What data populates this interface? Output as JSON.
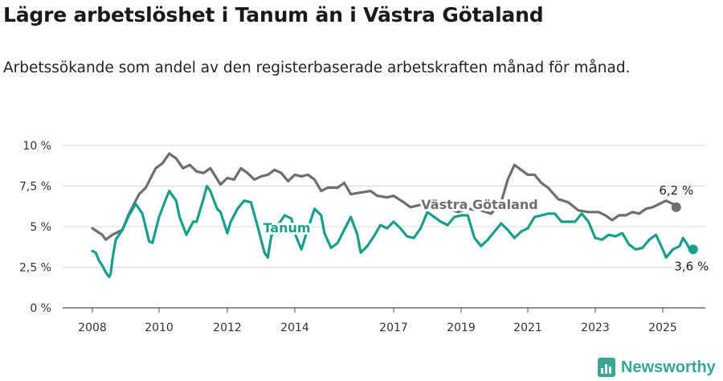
{
  "header": {
    "title": "Lägre arbetslöshet i Tanum än i Västra Götaland",
    "subtitle": "Arbetssökande som andel av den registerbaserade arbetskraften månad för månad."
  },
  "brand": {
    "name": "Newsworthy",
    "icon": "bar-chart-icon",
    "color": "#3aa592"
  },
  "chart_data": {
    "type": "line",
    "title": "Lägre arbetslöshet i Tanum än i Västra Götaland",
    "subtitle": "Arbetssökande som andel av den registerbaserade arbetskraften månad för månad.",
    "x_ticks": [
      "2008",
      "2010",
      "2012",
      "2014",
      "2017",
      "2019",
      "2021",
      "2023",
      "2025"
    ],
    "y_ticks": [
      "0 %",
      "2,5 %",
      "5 %",
      "7,5 %",
      "10 %"
    ],
    "xlim": [
      2007.5,
      2026.0
    ],
    "ylim": [
      0,
      10
    ],
    "grid": true,
    "series": [
      {
        "name": "Västra Götaland",
        "color": "#6e6e72",
        "end_label": "6,2 %",
        "points": [
          [
            2008.0,
            4.9
          ],
          [
            2008.3,
            4.5
          ],
          [
            2008.4,
            4.2
          ],
          [
            2008.6,
            4.5
          ],
          [
            2008.9,
            4.8
          ],
          [
            2009.1,
            5.8
          ],
          [
            2009.4,
            7.0
          ],
          [
            2009.6,
            7.4
          ],
          [
            2009.9,
            8.6
          ],
          [
            2010.1,
            8.9
          ],
          [
            2010.3,
            9.5
          ],
          [
            2010.5,
            9.2
          ],
          [
            2010.7,
            8.6
          ],
          [
            2010.9,
            8.8
          ],
          [
            2011.1,
            8.4
          ],
          [
            2011.3,
            8.3
          ],
          [
            2011.5,
            8.6
          ],
          [
            2011.8,
            7.6
          ],
          [
            2012.0,
            8.0
          ],
          [
            2012.2,
            7.9
          ],
          [
            2012.4,
            8.6
          ],
          [
            2012.6,
            8.3
          ],
          [
            2012.8,
            7.9
          ],
          [
            2013.0,
            8.1
          ],
          [
            2013.2,
            8.2
          ],
          [
            2013.4,
            8.5
          ],
          [
            2013.6,
            8.3
          ],
          [
            2013.8,
            7.8
          ],
          [
            2014.0,
            8.2
          ],
          [
            2014.2,
            8.1
          ],
          [
            2014.4,
            8.2
          ],
          [
            2014.6,
            7.9
          ],
          [
            2014.8,
            7.2
          ],
          [
            2015.0,
            7.4
          ],
          [
            2015.3,
            7.4
          ],
          [
            2015.5,
            7.7
          ],
          [
            2015.7,
            7.0
          ],
          [
            2016.0,
            7.1
          ],
          [
            2016.3,
            7.2
          ],
          [
            2016.5,
            6.9
          ],
          [
            2016.8,
            6.8
          ],
          [
            2017.0,
            6.9
          ],
          [
            2017.3,
            6.5
          ],
          [
            2017.5,
            6.2
          ],
          [
            2017.9,
            6.4
          ],
          [
            2018.2,
            6.1
          ],
          [
            2018.5,
            6.2
          ],
          [
            2018.9,
            5.9
          ],
          [
            2019.2,
            6.1
          ],
          [
            2019.6,
            6.0
          ],
          [
            2019.9,
            5.8
          ],
          [
            2020.2,
            6.5
          ],
          [
            2020.4,
            7.9
          ],
          [
            2020.6,
            8.8
          ],
          [
            2020.8,
            8.5
          ],
          [
            2021.0,
            8.2
          ],
          [
            2021.2,
            8.2
          ],
          [
            2021.4,
            7.7
          ],
          [
            2021.6,
            7.4
          ],
          [
            2021.9,
            6.7
          ],
          [
            2022.2,
            6.5
          ],
          [
            2022.5,
            6.0
          ],
          [
            2022.8,
            5.9
          ],
          [
            2023.1,
            5.9
          ],
          [
            2023.3,
            5.7
          ],
          [
            2023.5,
            5.4
          ],
          [
            2023.7,
            5.7
          ],
          [
            2023.9,
            5.7
          ],
          [
            2024.1,
            5.9
          ],
          [
            2024.3,
            5.8
          ],
          [
            2024.5,
            6.1
          ],
          [
            2024.7,
            6.2
          ],
          [
            2024.9,
            6.4
          ],
          [
            2025.1,
            6.6
          ],
          [
            2025.3,
            6.4
          ],
          [
            2025.4,
            6.2
          ]
        ]
      },
      {
        "name": "Tanum",
        "color": "#1a9e8c",
        "end_label": "3,6 %",
        "points": [
          [
            2008.0,
            3.5
          ],
          [
            2008.1,
            3.4
          ],
          [
            2008.2,
            2.9
          ],
          [
            2008.3,
            2.6
          ],
          [
            2008.4,
            2.2
          ],
          [
            2008.5,
            1.9
          ],
          [
            2008.55,
            2.1
          ],
          [
            2008.6,
            3.0
          ],
          [
            2008.7,
            4.2
          ],
          [
            2008.9,
            4.8
          ],
          [
            2009.1,
            5.7
          ],
          [
            2009.3,
            6.4
          ],
          [
            2009.5,
            5.8
          ],
          [
            2009.7,
            4.1
          ],
          [
            2009.8,
            4.0
          ],
          [
            2010.0,
            5.6
          ],
          [
            2010.2,
            6.7
          ],
          [
            2010.3,
            7.2
          ],
          [
            2010.5,
            6.6
          ],
          [
            2010.6,
            5.6
          ],
          [
            2010.8,
            4.5
          ],
          [
            2011.0,
            5.3
          ],
          [
            2011.1,
            5.3
          ],
          [
            2011.3,
            6.7
          ],
          [
            2011.4,
            7.5
          ],
          [
            2011.5,
            7.2
          ],
          [
            2011.7,
            6.1
          ],
          [
            2011.8,
            5.9
          ],
          [
            2012.0,
            4.6
          ],
          [
            2012.1,
            5.3
          ],
          [
            2012.3,
            6.1
          ],
          [
            2012.5,
            6.6
          ],
          [
            2012.7,
            6.5
          ],
          [
            2012.9,
            5.0
          ],
          [
            2013.1,
            3.4
          ],
          [
            2013.2,
            3.1
          ],
          [
            2013.3,
            4.4
          ],
          [
            2013.5,
            5.1
          ],
          [
            2013.7,
            5.7
          ],
          [
            2013.9,
            5.5
          ],
          [
            2014.0,
            4.6
          ],
          [
            2014.2,
            3.6
          ],
          [
            2014.4,
            4.9
          ],
          [
            2014.6,
            6.1
          ],
          [
            2014.8,
            5.7
          ],
          [
            2014.9,
            4.6
          ],
          [
            2015.1,
            3.7
          ],
          [
            2015.3,
            4.0
          ],
          [
            2015.5,
            4.8
          ],
          [
            2015.7,
            5.6
          ],
          [
            2015.9,
            4.5
          ],
          [
            2016.0,
            3.4
          ],
          [
            2016.2,
            3.8
          ],
          [
            2016.4,
            4.4
          ],
          [
            2016.6,
            5.1
          ],
          [
            2016.8,
            4.9
          ],
          [
            2017.0,
            5.3
          ],
          [
            2017.2,
            4.9
          ],
          [
            2017.4,
            4.4
          ],
          [
            2017.6,
            4.3
          ],
          [
            2017.8,
            4.9
          ],
          [
            2018.0,
            5.9
          ],
          [
            2018.2,
            5.6
          ],
          [
            2018.4,
            5.3
          ],
          [
            2018.6,
            5.1
          ],
          [
            2018.8,
            5.6
          ],
          [
            2019.0,
            5.7
          ],
          [
            2019.2,
            5.7
          ],
          [
            2019.4,
            4.3
          ],
          [
            2019.6,
            3.8
          ],
          [
            2019.8,
            4.2
          ],
          [
            2020.0,
            4.7
          ],
          [
            2020.2,
            5.2
          ],
          [
            2020.4,
            4.8
          ],
          [
            2020.6,
            4.3
          ],
          [
            2020.8,
            4.7
          ],
          [
            2021.0,
            4.9
          ],
          [
            2021.2,
            5.6
          ],
          [
            2021.4,
            5.7
          ],
          [
            2021.6,
            5.8
          ],
          [
            2021.8,
            5.8
          ],
          [
            2022.0,
            5.3
          ],
          [
            2022.2,
            5.3
          ],
          [
            2022.4,
            5.3
          ],
          [
            2022.6,
            5.8
          ],
          [
            2022.8,
            5.3
          ],
          [
            2023.0,
            4.3
          ],
          [
            2023.2,
            4.2
          ],
          [
            2023.4,
            4.5
          ],
          [
            2023.6,
            4.4
          ],
          [
            2023.8,
            4.6
          ],
          [
            2024.0,
            3.9
          ],
          [
            2024.2,
            3.6
          ],
          [
            2024.4,
            3.7
          ],
          [
            2024.6,
            4.2
          ],
          [
            2024.8,
            4.5
          ],
          [
            2025.0,
            3.6
          ],
          [
            2025.1,
            3.1
          ],
          [
            2025.3,
            3.6
          ],
          [
            2025.5,
            3.8
          ],
          [
            2025.6,
            4.3
          ],
          [
            2025.7,
            4.0
          ],
          [
            2025.8,
            3.6
          ],
          [
            2025.9,
            3.6
          ]
        ]
      }
    ],
    "annotations": [
      {
        "text": "Västra Götaland",
        "series": "Västra Götaland",
        "x": 2018.6
      },
      {
        "text": "Tanum",
        "series": "Tanum",
        "x": 2014.0
      }
    ]
  }
}
